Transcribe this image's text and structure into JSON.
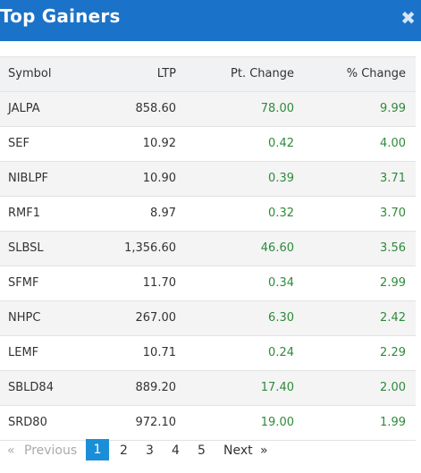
{
  "header": {
    "title": "Top Gainers",
    "close_symbol": "✖"
  },
  "table": {
    "columns": [
      "Symbol",
      "LTP",
      "Pt. Change",
      "% Change"
    ],
    "rows": [
      {
        "symbol": "JALPA",
        "ltp": "858.60",
        "pt_change": "78.00",
        "pct_change": "9.99"
      },
      {
        "symbol": "SEF",
        "ltp": "10.92",
        "pt_change": "0.42",
        "pct_change": "4.00"
      },
      {
        "symbol": "NIBLPF",
        "ltp": "10.90",
        "pt_change": "0.39",
        "pct_change": "3.71"
      },
      {
        "symbol": "RMF1",
        "ltp": "8.97",
        "pt_change": "0.32",
        "pct_change": "3.70"
      },
      {
        "symbol": "SLBSL",
        "ltp": "1,356.60",
        "pt_change": "46.60",
        "pct_change": "3.56"
      },
      {
        "symbol": "SFMF",
        "ltp": "11.70",
        "pt_change": "0.34",
        "pct_change": "2.99"
      },
      {
        "symbol": "NHPC",
        "ltp": "267.00",
        "pt_change": "6.30",
        "pct_change": "2.42"
      },
      {
        "symbol": "LEMF",
        "ltp": "10.71",
        "pt_change": "0.24",
        "pct_change": "2.29"
      },
      {
        "symbol": "SBLD84",
        "ltp": "889.20",
        "pt_change": "17.40",
        "pct_change": "2.00"
      },
      {
        "symbol": "SRD80",
        "ltp": "972.10",
        "pt_change": "19.00",
        "pct_change": "1.99"
      }
    ]
  },
  "pagination": {
    "prev_arrow": "«",
    "prev_label": "Previous",
    "pages": [
      "1",
      "2",
      "3",
      "4",
      "5"
    ],
    "active_page": "1",
    "next_label": "Next",
    "next_arrow": "»"
  },
  "colors": {
    "header_bg": "#1a73c8",
    "positive": "#2e8b3a",
    "active_page": "#1a8fd8"
  }
}
